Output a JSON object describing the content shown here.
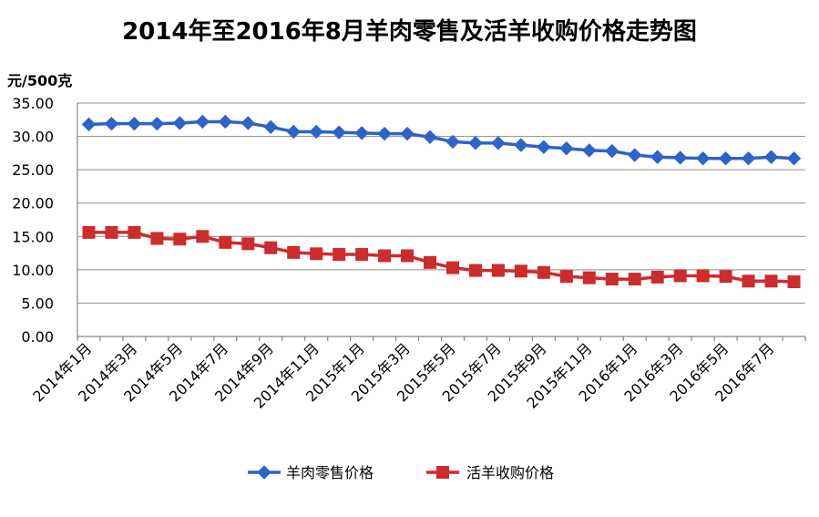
{
  "chart_data": {
    "type": "line",
    "title": "2014年至2016年8月羊肉零售及活羊收购价格走势图",
    "ylabel": "元/500克",
    "xlabel": "",
    "ylim": [
      0,
      35
    ],
    "yticks": [
      "0.00",
      "5.00",
      "10.00",
      "15.00",
      "20.00",
      "25.00",
      "30.00",
      "35.00"
    ],
    "grid": true,
    "legend_position": "bottom",
    "categories": [
      "2014年1月",
      "2014年2月",
      "2014年3月",
      "2014年4月",
      "2014年5月",
      "2014年6月",
      "2014年7月",
      "2014年8月",
      "2014年9月",
      "2014年10月",
      "2014年11月",
      "2014年12月",
      "2015年1月",
      "2015年2月",
      "2015年3月",
      "2015年4月",
      "2015年5月",
      "2015年6月",
      "2015年7月",
      "2015年8月",
      "2015年9月",
      "2015年10月",
      "2015年11月",
      "2015年12月",
      "2016年1月",
      "2016年2月",
      "2016年3月",
      "2016年4月",
      "2016年5月",
      "2016年6月",
      "2016年7月",
      "2016年8月"
    ],
    "tick_labels": [
      "2014年1月",
      "2014年3月",
      "2014年5月",
      "2014年7月",
      "2014年9月",
      "2014年11月",
      "2015年1月",
      "2015年3月",
      "2015年5月",
      "2015年7月",
      "2015年9月",
      "2015年11月",
      "2016年1月",
      "2016年3月",
      "2016年5月",
      "2016年7月"
    ],
    "series": [
      {
        "name": "羊肉零售价格",
        "color": "#2e63c8",
        "marker": "diamond",
        "values": [
          31.8,
          31.9,
          31.9,
          31.9,
          32.0,
          32.2,
          32.2,
          32.0,
          31.4,
          30.7,
          30.7,
          30.6,
          30.5,
          30.4,
          30.4,
          29.9,
          29.2,
          29.0,
          29.0,
          28.7,
          28.4,
          28.2,
          27.9,
          27.8,
          27.2,
          26.9,
          26.8,
          26.7,
          26.7,
          26.7,
          26.9,
          26.7
        ]
      },
      {
        "name": "活羊收购价格",
        "color": "#cc2c2c",
        "marker": "square",
        "values": [
          15.6,
          15.6,
          15.6,
          14.7,
          14.6,
          15.0,
          14.1,
          13.9,
          13.3,
          12.6,
          12.4,
          12.3,
          12.3,
          12.1,
          12.1,
          11.1,
          10.3,
          9.9,
          9.9,
          9.8,
          9.6,
          9.0,
          8.8,
          8.6,
          8.6,
          8.9,
          9.1,
          9.1,
          9.0,
          8.3,
          8.3,
          8.2
        ]
      }
    ]
  }
}
